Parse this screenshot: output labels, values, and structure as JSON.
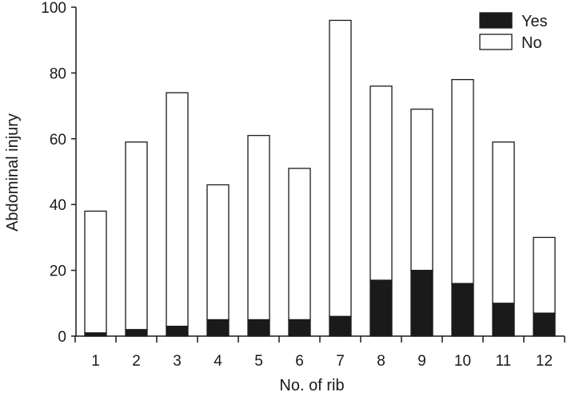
{
  "chart_data": {
    "type": "bar",
    "stacked": true,
    "xlabel": "No. of rib",
    "ylabel": "Abdominal injury",
    "ylim": [
      0,
      100
    ],
    "yticks": [
      0,
      20,
      40,
      60,
      80,
      100
    ],
    "categories": [
      "1",
      "2",
      "3",
      "4",
      "5",
      "6",
      "7",
      "8",
      "9",
      "10",
      "11",
      "12"
    ],
    "series": [
      {
        "name": "Yes",
        "color": "#1a1a1a",
        "values": [
          1,
          2,
          3,
          5,
          5,
          5,
          6,
          17,
          20,
          16,
          10,
          7
        ]
      },
      {
        "name": "No",
        "color": "#ffffff",
        "values": [
          37,
          57,
          71,
          41,
          56,
          46,
          90,
          59,
          49,
          62,
          49,
          23
        ]
      }
    ],
    "legend_position": "top-right",
    "grid": false
  }
}
